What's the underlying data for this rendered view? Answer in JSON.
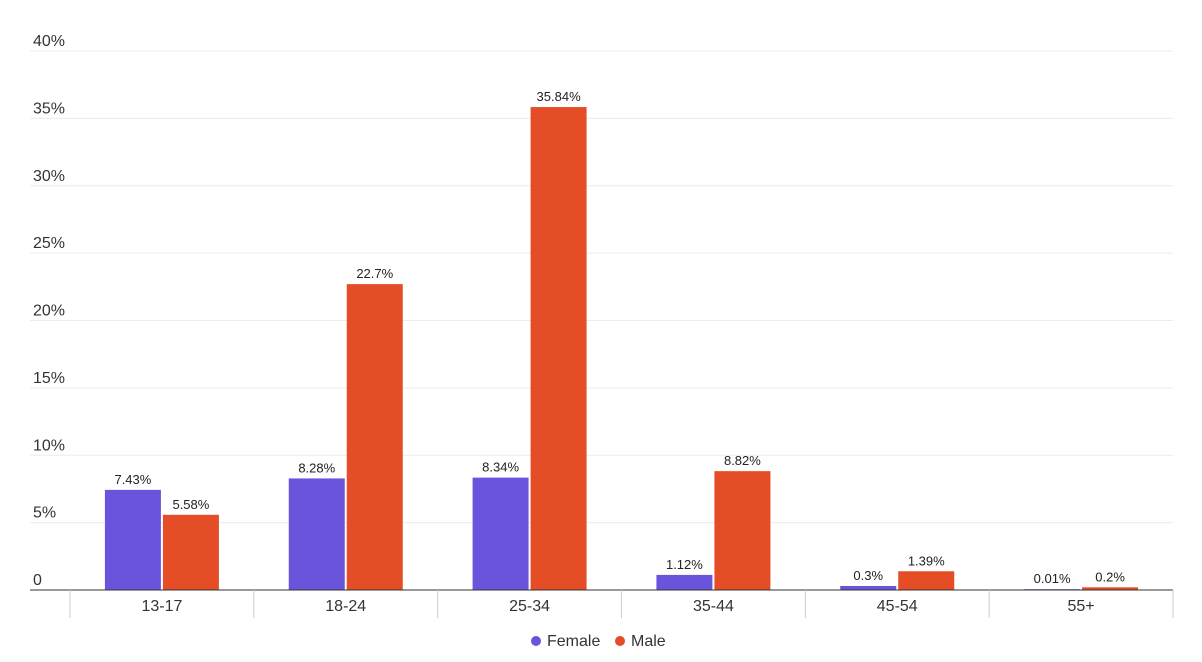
{
  "chart_data": {
    "type": "bar",
    "categories": [
      "13-17",
      "18-24",
      "25-34",
      "35-44",
      "45-54",
      "55+"
    ],
    "series": [
      {
        "name": "Female",
        "values": [
          7.43,
          8.28,
          8.34,
          1.12,
          0.3,
          0.01
        ],
        "labels": [
          "7.43%",
          "8.28%",
          "8.34%",
          "1.12%",
          "0.3%",
          "0.01%"
        ],
        "color": "#6b54dc"
      },
      {
        "name": "Male",
        "values": [
          5.58,
          22.7,
          35.84,
          8.82,
          1.39,
          0.2
        ],
        "labels": [
          "5.58%",
          "22.7%",
          "35.84%",
          "8.82%",
          "1.39%",
          "0.2%"
        ],
        "color": "#e44d26"
      }
    ],
    "y_ticks": [
      0,
      5,
      10,
      15,
      20,
      25,
      30,
      35,
      40
    ],
    "y_tick_labels": [
      "0",
      "5%",
      "10%",
      "15%",
      "20%",
      "25%",
      "30%",
      "35%",
      "40%"
    ],
    "ylim": [
      0,
      40
    ],
    "grid": true,
    "legend_position": "bottom-center",
    "title": "",
    "xlabel": "",
    "ylabel": ""
  }
}
